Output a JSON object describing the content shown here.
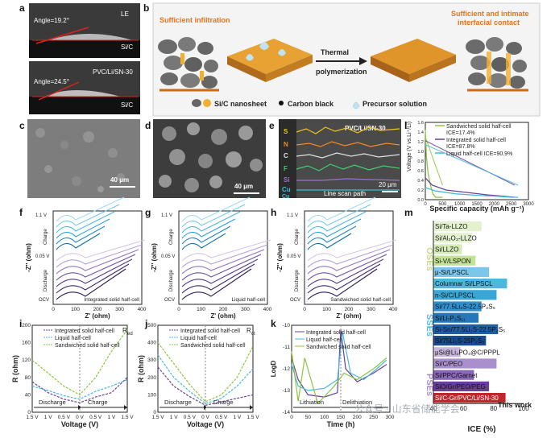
{
  "panels": {
    "a": {
      "letter": "a",
      "top_angle": "Angle=19.2°",
      "top_label1": "LE",
      "top_label2": "Si/C",
      "bottom_label1": "PVC/Li/SN-30",
      "bottom_angle": "Angle=24.5°",
      "bottom_label2": "Si/C"
    },
    "b": {
      "letter": "b",
      "left_title": "Sufficient infiltration",
      "right_title1": "Sufficient and intimate",
      "right_title2": "interfacial contact",
      "arrow_top": "Thermal",
      "arrow_bottom": "polymerization",
      "legend_nanosheet": "Si/C nanosheet",
      "legend_carbon": "Carbon black",
      "legend_precursor": "Precursor solution"
    },
    "c": {
      "letter": "c",
      "scale": "40 μm"
    },
    "d": {
      "letter": "d",
      "scale": "40 μm"
    },
    "e": {
      "letter": "e",
      "title": "PVC/Li/SN-30",
      "scale": "20 μm",
      "path": "Line scan path",
      "elements": [
        "S",
        "N",
        "C",
        "F",
        "Si",
        "Cu",
        "Cu"
      ]
    },
    "l": {
      "letter": "l",
      "legend": [
        {
          "name": "Sandwiched solid half-cell",
          "ice": "ICE=17.4%"
        },
        {
          "name": "Integrated solid half-cell",
          "ice": "ICE=87.8%"
        },
        {
          "name": "Liquid half-cell ICE=90.9%",
          "ice": ""
        }
      ]
    },
    "f": {
      "letter": "f",
      "label": "Integrated solid half-cell"
    },
    "g": {
      "letter": "g",
      "label": "Liquid half-cell"
    },
    "h": {
      "letter": "h",
      "label": "Sandwiched solid half-cell"
    },
    "eis_common": {
      "v_top": "1.1 V",
      "v_mid": "0.05 V",
      "charge": "Charge",
      "discharge": "Discharge",
      "ocv": "OCV",
      "ylabel": "-Z'' (ohm)",
      "xlabel": "Z' (ohm)"
    },
    "i": {
      "letter": "i",
      "legend": [
        "Integrated solid half-cell",
        "Liquid half-cell",
        "Sandwiched solid half-cell"
      ],
      "tag": "R",
      "tag_sub": "ed"
    },
    "j": {
      "letter": "j",
      "legend": [
        "Integrated solid half-cell",
        "Liquid half-cell",
        "Sandwiched solid half-cell"
      ],
      "tag": "R",
      "tag_sub": "ct"
    },
    "ij_common": {
      "discharge": "Discharge",
      "charge": "Charge",
      "xlabel": "Voltage (V)",
      "ylabel": "R (ohm)"
    },
    "k": {
      "letter": "k",
      "legend": [
        "Integrated solid half-cell",
        "Liquid half-cell",
        "Sandwiched solid half-cell"
      ],
      "lithiation": "Lithiation",
      "delithiation": "Delithiation",
      "xlabel": "Time (h)"
    },
    "m": {
      "letter": "m",
      "group_oses": "OSEs",
      "group_sses": "SSEs",
      "group_pses": "PSEs",
      "this_work": "This work",
      "xlabel": "ICE (%)"
    }
  },
  "watermark": "公众号 · 山东省储能学会",
  "colors": {
    "cyan": "#4bb8e0",
    "purple": "#6a3f9c",
    "green": "#8dc63f",
    "pink": "#e4148c",
    "blue": "#2f8fd0",
    "orange": "#f08a24"
  },
  "chart_data": [
    {
      "type": "line",
      "panel": "l",
      "xlabel": "Specific capacity (mAh g⁻¹)",
      "ylabel": "Voltage (V vs.Li⁺/Li)",
      "xlim": [
        0,
        3000
      ],
      "ylim": [
        0,
        1.6
      ],
      "xticks": [
        "0",
        "500",
        "1000",
        "1500",
        "2000",
        "2500",
        "3000"
      ],
      "yticks": [
        "0.0",
        "0.2",
        "0.4",
        "0.6",
        "0.8",
        "1.0",
        "1.2",
        "1.4",
        "1.6"
      ],
      "series": [
        {
          "name": "Sandwiched solid half-cell",
          "color": "#8dc63f",
          "x": [
            0,
            30,
            80,
            150,
            220,
            300,
            500
          ],
          "y": [
            1.45,
            0.9,
            0.55,
            0.3,
            0.12,
            0.05,
            0.05
          ]
        },
        {
          "name": "Integrated solid half-cell",
          "color": "#6a3f9c",
          "x": [
            0,
            200,
            600,
            1200,
            1800,
            2300,
            2600
          ],
          "y": [
            0.45,
            0.3,
            0.2,
            0.15,
            0.1,
            0.07,
            0.05
          ]
        },
        {
          "name": "Liquid half-cell",
          "color": "#4bb8e0",
          "x": [
            0,
            300,
            900,
            1500,
            2100,
            2500,
            2700
          ],
          "y": [
            0.25,
            0.18,
            0.12,
            0.09,
            0.07,
            0.05,
            0.05
          ]
        }
      ]
    },
    {
      "type": "line",
      "panel": "i",
      "xticks": [
        "1.5 V",
        "1 V",
        "0.5 V",
        "0 V",
        "0.5 V",
        "1 V",
        "1.5 V"
      ],
      "ylim": [
        0,
        200
      ],
      "yticks": [
        "0",
        "40",
        "80",
        "120",
        "160",
        "200"
      ],
      "x": [
        0,
        1,
        2,
        3,
        4,
        5,
        6
      ],
      "series": [
        {
          "name": "Integrated solid half-cell",
          "color": "#6a3f9c",
          "values": [
            70,
            45,
            30,
            22,
            35,
            45,
            80
          ]
        },
        {
          "name": "Liquid half-cell",
          "color": "#4bb8e0",
          "values": [
            60,
            50,
            38,
            30,
            48,
            60,
            75
          ]
        },
        {
          "name": "Sandwiched solid half-cell",
          "color": "#8dc63f",
          "values": [
            120,
            90,
            60,
            40,
            80,
            140,
            190
          ]
        }
      ]
    },
    {
      "type": "line",
      "panel": "j",
      "xticks": [
        "1.5 V",
        "1 V",
        "0.5 V",
        "0 V",
        "0.5 V",
        "1 V",
        "1.5 V"
      ],
      "ylim": [
        0,
        500
      ],
      "yticks": [
        "0",
        "100",
        "200",
        "300",
        "400",
        "500"
      ],
      "x": [
        0,
        1,
        2,
        3,
        4,
        5,
        6
      ],
      "series": [
        {
          "name": "Integrated solid half-cell",
          "color": "#6a3f9c",
          "values": [
            260,
            150,
            90,
            40,
            60,
            80,
            100
          ]
        },
        {
          "name": "Liquid half-cell",
          "color": "#4bb8e0",
          "values": [
            330,
            200,
            120,
            50,
            80,
            150,
            250
          ]
        },
        {
          "name": "Sandwiched solid half-cell",
          "color": "#8dc63f",
          "values": [
            400,
            280,
            160,
            60,
            100,
            200,
            380
          ]
        }
      ]
    },
    {
      "type": "line",
      "panel": "k",
      "ylabel": "LogD",
      "xlim": [
        0,
        300
      ],
      "xticks": [
        "0",
        "50",
        "100",
        "150",
        "200",
        "250",
        "300"
      ],
      "ylim": [
        -14,
        -10
      ],
      "yticks": [
        "-14",
        "-13",
        "-12",
        "-11",
        "-10"
      ],
      "series": [
        {
          "name": "Integrated solid half-cell",
          "color": "#6a3f9c",
          "x": [
            0,
            20,
            50,
            100,
            140,
            150,
            165,
            200,
            250,
            290
          ],
          "y": [
            -11.5,
            -12.5,
            -13.2,
            -13.3,
            -13.1,
            -10.2,
            -12.0,
            -12.6,
            -12.2,
            -11.8
          ]
        },
        {
          "name": "Liquid half-cell",
          "color": "#4bb8e0",
          "x": [
            0,
            20,
            50,
            100,
            140,
            155,
            180,
            220,
            260,
            290
          ],
          "y": [
            -11.8,
            -12.8,
            -13.0,
            -12.9,
            -12.5,
            -10.3,
            -12.2,
            -12.5,
            -12.0,
            -11.6
          ]
        },
        {
          "name": "Sandwiched solid half-cell",
          "color": "#8dc63f",
          "x": [
            0,
            20,
            40,
            80,
            130,
            160,
            200,
            250,
            290
          ],
          "y": [
            -11.2,
            -13.5,
            -11.5,
            -13.6,
            -12.8,
            -12.2,
            -12.5,
            -12.0,
            -11.5
          ]
        }
      ]
    },
    {
      "type": "bar",
      "panel": "m",
      "orientation": "horizontal",
      "xlabel": "ICE (%)",
      "xlim": [
        40,
        100
      ],
      "xticks": [
        "40",
        "60",
        "80",
        "100"
      ],
      "categories": [
        "Si/Ta-LLZO",
        "Si/Al₂O₃-LLZO",
        "Si/LLZO",
        "Si-V/LSPON",
        "μ-Si/LPSCL",
        "Columnar Si/LPSCL",
        "n-Si/C/LPSCL",
        "Si/77.5Li₂S-22.5P₂S₅",
        "Si/Li₇P₃S₁₁",
        "Si-Sn/77.5Li₂S-22.5P₂S₅",
        "Si/75Li₂S-25P₂S₅",
        "μSi@Li₃PO₄@C/PPPL",
        "Si/C/PEO",
        "Si/PPC/Garnet",
        "SiO/Gr/PEO/PEG",
        "Si/C-Gr/PVC/Li/SN-30"
      ],
      "values": [
        72,
        66,
        59,
        68,
        77,
        89,
        82,
        72,
        70,
        83,
        75,
        58,
        82,
        67,
        77,
        88
      ],
      "groups": [
        "OSEs",
        "OSEs",
        "OSEs",
        "OSEs",
        "SSEs",
        "SSEs",
        "SSEs",
        "SSEs",
        "SSEs",
        "SSEs",
        "SSEs",
        "PSEs",
        "PSEs",
        "PSEs",
        "PSEs",
        "PSEs"
      ],
      "colors": [
        "#e4f1cf",
        "#e4f1cf",
        "#d6ebb6",
        "#c3e296",
        "#7cc6ea",
        "#4bb8e0",
        "#3aa6d6",
        "#2f8fd0",
        "#2477b8",
        "#1f5ea3",
        "#1a4a8f",
        "#c9b8de",
        "#a98fcd",
        "#8a66b8",
        "#6a3f9c",
        "#c0272d"
      ]
    }
  ]
}
